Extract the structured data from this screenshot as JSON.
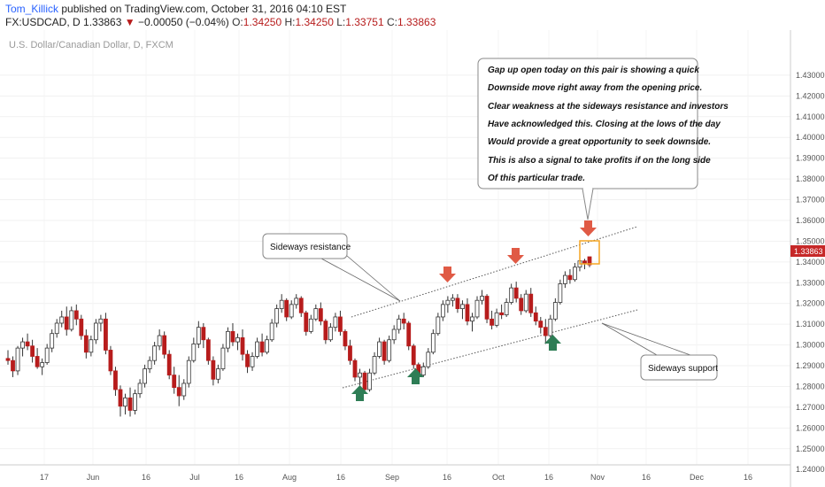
{
  "header": {
    "author": "Tom_Killick",
    "published_text": "published on TradingView.com, October 31, 2016 04:10 EST",
    "symbol": "FX:USDCAD, D",
    "last": "1.33863",
    "change": "−0.00050 (−0.04%)",
    "o_label": "O:",
    "o_val": "1.34250",
    "h_label": "H:",
    "h_val": "1.34250",
    "l_label": "L:",
    "l_val": "1.33751",
    "c_label": "C:",
    "c_val": "1.33863"
  },
  "colors": {
    "up": "#ffffff",
    "down": "#b71c1c",
    "wick": "#333333",
    "arrow_down": "#e05a45",
    "arrow_up": "#2e7d55",
    "price_tag": "#c62828",
    "highlight": "#f5a623"
  },
  "chart_data": {
    "type": "candlestick",
    "title": "U.S. Dollar/Canadian Dollar, D, FXCM",
    "ylim": [
      1.24,
      1.44
    ],
    "y_ticks": [
      "1.43000",
      "1.42000",
      "1.41000",
      "1.40000",
      "1.39000",
      "1.38000",
      "1.37000",
      "1.36000",
      "1.35000",
      "1.34000",
      "1.33000",
      "1.32000",
      "1.31000",
      "1.30000",
      "1.29000",
      "1.28000",
      "1.27000",
      "1.26000",
      "1.25000",
      "1.24000"
    ],
    "x_ticks": [
      "17",
      "Jun",
      "16",
      "Jul",
      "16",
      "Aug",
      "16",
      "Sep",
      "16",
      "Oct",
      "16",
      "Nov",
      "16",
      "Dec",
      "16"
    ],
    "current_price": "1.33863",
    "ohlc": [
      [
        1.2935,
        1.2975,
        1.2905,
        1.2925
      ],
      [
        1.2925,
        1.2945,
        1.2845,
        1.2875
      ],
      [
        1.2875,
        1.2995,
        1.2855,
        1.2985
      ],
      [
        1.2985,
        1.3035,
        1.2945,
        1.3015
      ],
      [
        1.3015,
        1.3055,
        1.2975,
        1.2995
      ],
      [
        1.2995,
        1.3025,
        1.2915,
        1.2945
      ],
      [
        1.2945,
        1.2985,
        1.2885,
        1.2895
      ],
      [
        1.2895,
        1.2935,
        1.2855,
        1.2915
      ],
      [
        1.2915,
        1.3005,
        1.2905,
        1.2985
      ],
      [
        1.2985,
        1.3075,
        1.2965,
        1.3055
      ],
      [
        1.3055,
        1.3125,
        1.3035,
        1.3105
      ],
      [
        1.3105,
        1.3165,
        1.3085,
        1.3135
      ],
      [
        1.3135,
        1.3185,
        1.3045,
        1.3075
      ],
      [
        1.3075,
        1.3185,
        1.3065,
        1.3165
      ],
      [
        1.3165,
        1.3195,
        1.3095,
        1.3125
      ],
      [
        1.3125,
        1.3145,
        1.3025,
        1.3045
      ],
      [
        1.3045,
        1.3075,
        1.2935,
        1.2965
      ],
      [
        1.2965,
        1.3045,
        1.2945,
        1.3025
      ],
      [
        1.3025,
        1.3125,
        1.3005,
        1.3105
      ],
      [
        1.3105,
        1.3145,
        1.3065,
        1.3125
      ],
      [
        1.3125,
        1.3155,
        1.2955,
        1.2975
      ],
      [
        1.2975,
        1.2995,
        1.2855,
        1.2875
      ],
      [
        1.2875,
        1.2895,
        1.2755,
        1.2785
      ],
      [
        1.2785,
        1.2805,
        1.2655,
        1.2705
      ],
      [
        1.2705,
        1.2765,
        1.2665,
        1.2745
      ],
      [
        1.2745,
        1.2795,
        1.2655,
        1.2685
      ],
      [
        1.2685,
        1.2785,
        1.2665,
        1.2765
      ],
      [
        1.2765,
        1.2835,
        1.2745,
        1.2815
      ],
      [
        1.2815,
        1.2905,
        1.2795,
        1.2885
      ],
      [
        1.2885,
        1.2945,
        1.2865,
        1.2925
      ],
      [
        1.2925,
        1.3015,
        1.2905,
        1.2995
      ],
      [
        1.2995,
        1.3075,
        1.2975,
        1.3045
      ],
      [
        1.3045,
        1.3065,
        1.2935,
        1.2955
      ],
      [
        1.2955,
        1.2975,
        1.2835,
        1.2855
      ],
      [
        1.2855,
        1.2895,
        1.2765,
        1.2795
      ],
      [
        1.2795,
        1.2855,
        1.2705,
        1.2755
      ],
      [
        1.2755,
        1.2835,
        1.2735,
        1.2815
      ],
      [
        1.2815,
        1.2945,
        1.2795,
        1.2925
      ],
      [
        1.2925,
        1.3035,
        1.2915,
        1.3005
      ],
      [
        1.3005,
        1.3115,
        1.2985,
        1.3085
      ],
      [
        1.3085,
        1.3105,
        1.2985,
        1.3025
      ],
      [
        1.3025,
        1.3035,
        1.2905,
        1.2925
      ],
      [
        1.2925,
        1.2945,
        1.2805,
        1.2835
      ],
      [
        1.2835,
        1.2905,
        1.2815,
        1.2885
      ],
      [
        1.2885,
        1.3005,
        1.2875,
        1.2985
      ],
      [
        1.2985,
        1.3085,
        1.2965,
        1.3065
      ],
      [
        1.3065,
        1.3105,
        1.2995,
        1.3015
      ],
      [
        1.3015,
        1.3055,
        1.2975,
        1.3035
      ],
      [
        1.3035,
        1.3075,
        1.2925,
        1.2955
      ],
      [
        1.2955,
        1.2975,
        1.2865,
        1.2895
      ],
      [
        1.2895,
        1.2965,
        1.2875,
        1.2945
      ],
      [
        1.2945,
        1.3035,
        1.2935,
        1.3015
      ],
      [
        1.3015,
        1.3055,
        1.2945,
        1.2965
      ],
      [
        1.2965,
        1.3045,
        1.2955,
        1.3025
      ],
      [
        1.3025,
        1.3125,
        1.3015,
        1.3105
      ],
      [
        1.3105,
        1.3195,
        1.3085,
        1.3175
      ],
      [
        1.3175,
        1.3245,
        1.3155,
        1.3215
      ],
      [
        1.3215,
        1.3225,
        1.3115,
        1.3135
      ],
      [
        1.3135,
        1.3215,
        1.3125,
        1.3195
      ],
      [
        1.3195,
        1.3245,
        1.3175,
        1.3225
      ],
      [
        1.3225,
        1.3235,
        1.3135,
        1.3155
      ],
      [
        1.3155,
        1.3165,
        1.3045,
        1.3065
      ],
      [
        1.3065,
        1.3145,
        1.3055,
        1.3125
      ],
      [
        1.3125,
        1.3195,
        1.3115,
        1.3175
      ],
      [
        1.3175,
        1.3205,
        1.3095,
        1.3115
      ],
      [
        1.3115,
        1.3125,
        1.3005,
        1.3025
      ],
      [
        1.3025,
        1.3105,
        1.3015,
        1.3085
      ],
      [
        1.3085,
        1.3155,
        1.3065,
        1.3135
      ],
      [
        1.3135,
        1.3165,
        1.3045,
        1.3065
      ],
      [
        1.3065,
        1.3075,
        1.2975,
        1.2995
      ],
      [
        1.2995,
        1.3025,
        1.2905,
        1.2925
      ],
      [
        1.2925,
        1.2935,
        1.2825,
        1.2845
      ],
      [
        1.2845,
        1.2885,
        1.2805,
        1.2865
      ],
      [
        1.2865,
        1.2875,
        1.2765,
        1.2785
      ],
      [
        1.2785,
        1.2885,
        1.2775,
        1.2865
      ],
      [
        1.2865,
        1.2965,
        1.2855,
        1.2945
      ],
      [
        1.2945,
        1.3035,
        1.2935,
        1.3015
      ],
      [
        1.3015,
        1.3025,
        1.2905,
        1.2925
      ],
      [
        1.2925,
        1.3045,
        1.2915,
        1.3025
      ],
      [
        1.3025,
        1.3095,
        1.3005,
        1.3075
      ],
      [
        1.3075,
        1.3145,
        1.3055,
        1.3125
      ],
      [
        1.3125,
        1.3155,
        1.3075,
        1.3105
      ],
      [
        1.3105,
        1.3115,
        1.2975,
        1.2995
      ],
      [
        1.2995,
        1.3005,
        1.2885,
        1.2905
      ],
      [
        1.2905,
        1.2915,
        1.2835,
        1.2855
      ],
      [
        1.2855,
        1.2915,
        1.2845,
        1.2895
      ],
      [
        1.2895,
        1.2985,
        1.2885,
        1.2965
      ],
      [
        1.2965,
        1.3075,
        1.2955,
        1.3055
      ],
      [
        1.3055,
        1.3155,
        1.3045,
        1.3135
      ],
      [
        1.3135,
        1.3215,
        1.3115,
        1.3195
      ],
      [
        1.3195,
        1.3235,
        1.3155,
        1.3215
      ],
      [
        1.3215,
        1.3245,
        1.3185,
        1.3225
      ],
      [
        1.3225,
        1.3245,
        1.3155,
        1.3175
      ],
      [
        1.3175,
        1.3215,
        1.3125,
        1.3195
      ],
      [
        1.3195,
        1.3225,
        1.3095,
        1.3115
      ],
      [
        1.3115,
        1.3155,
        1.3065,
        1.3135
      ],
      [
        1.3135,
        1.3235,
        1.3125,
        1.3215
      ],
      [
        1.3215,
        1.3265,
        1.3195,
        1.3235
      ],
      [
        1.3235,
        1.3245,
        1.3105,
        1.3125
      ],
      [
        1.3125,
        1.3165,
        1.3075,
        1.3095
      ],
      [
        1.3095,
        1.3175,
        1.3085,
        1.3155
      ],
      [
        1.3155,
        1.3195,
        1.3125,
        1.3145
      ],
      [
        1.3145,
        1.3225,
        1.3135,
        1.3205
      ],
      [
        1.3205,
        1.3295,
        1.3195,
        1.3275
      ],
      [
        1.3275,
        1.3305,
        1.3205,
        1.3225
      ],
      [
        1.3225,
        1.3245,
        1.3145,
        1.3165
      ],
      [
        1.3165,
        1.3265,
        1.3155,
        1.3245
      ],
      [
        1.3245,
        1.3275,
        1.3135,
        1.3155
      ],
      [
        1.3155,
        1.3185,
        1.3095,
        1.3115
      ],
      [
        1.3115,
        1.3135,
        1.3055,
        1.3085
      ],
      [
        1.3085,
        1.3125,
        1.3005,
        1.3045
      ],
      [
        1.3045,
        1.3145,
        1.3035,
        1.3125
      ],
      [
        1.3125,
        1.3225,
        1.3115,
        1.3205
      ],
      [
        1.3205,
        1.3315,
        1.3195,
        1.3295
      ],
      [
        1.3295,
        1.3355,
        1.3275,
        1.3335
      ],
      [
        1.3335,
        1.3365,
        1.3295,
        1.3315
      ],
      [
        1.3315,
        1.3395,
        1.3305,
        1.3375
      ],
      [
        1.3375,
        1.3425,
        1.3355,
        1.3405
      ],
      [
        1.3405,
        1.3415,
        1.3365,
        1.3395
      ],
      [
        1.3425,
        1.3425,
        1.3375,
        1.3386
      ]
    ]
  },
  "annotations": {
    "note_lines": [
      "Gap up open today on this pair is showing a quick",
      "Downside move right away from the opening price.",
      "Clear weakness at the sideways resistance and investors",
      "Have acknowledged this. Closing at the lows of the day",
      "Would provide a great opportunity to seek downside.",
      "This is also a signal to take profits if on the long side",
      "Of this particular trade."
    ],
    "resistance_label": "Sideways resistance",
    "support_label": "Sideways support"
  }
}
